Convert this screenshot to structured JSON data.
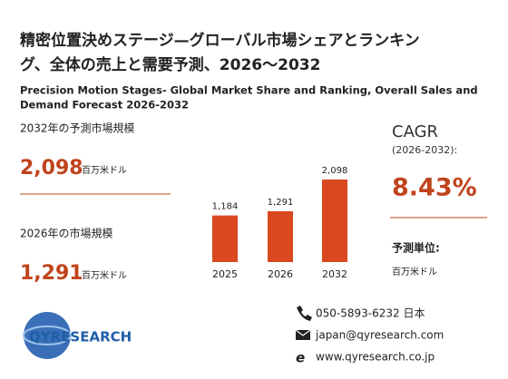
{
  "header": {
    "title_line1": "精密位置決めステージ—グローバル市場シェアとランキン",
    "title_line2": "グ、全体の売上と需要予測、2026～2032",
    "subtitle_line1": "Precision Motion Stages- Global Market Share and Ranking, Overall Sales and",
    "subtitle_line2": "Demand Forecast 2026-2032"
  },
  "left": {
    "forecast_label": "2032年の予測市場規模",
    "forecast_value": "2,098",
    "forecast_unit": "百万米ドル",
    "current_label": "2026年の市場規模",
    "current_value": "1,291",
    "current_unit": "百万米ドル"
  },
  "chart_data": {
    "type": "bar",
    "categories": [
      "2025",
      "2026",
      "2032"
    ],
    "values": [
      1184,
      1291,
      2098
    ],
    "value_labels": [
      "1,184",
      "1,291",
      "2,098"
    ],
    "color": "#d9481f"
  },
  "right": {
    "cagr_label": "CAGR",
    "cagr_period": "(2026-2032):",
    "cagr_value": "8.43%",
    "unit_label": "予測単位:",
    "unit_value": "百万米ドル"
  },
  "logo": {
    "text": "QYRESEARCH"
  },
  "contact": {
    "phone": "050-5893-6232 日本",
    "email": "japan@qyresearch.com",
    "web": "www.qyresearch.co.jp"
  }
}
